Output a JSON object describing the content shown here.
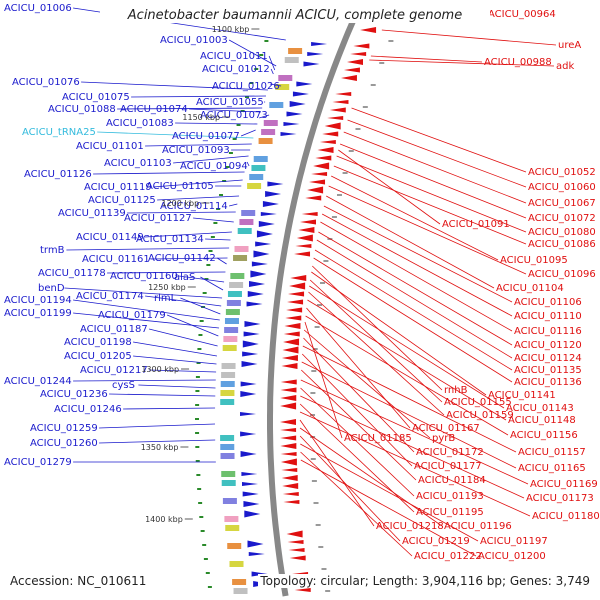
{
  "title": "Acinetobacter baumannii ACICU, complete genome",
  "footer": {
    "accession": "Accession: NC_010611",
    "summary": "Topology: circular; Length: 3,904,116 bp; Genes: 3,749"
  },
  "colors": {
    "forward_genes": "#1a1acc",
    "reverse_genes": "#e01010",
    "trna": "#33bbdd",
    "backbone": "#888888",
    "gc_marker": "#2a8a2a"
  },
  "kbp_marks": [
    "1100 kbp",
    "1150 kbp",
    "1200 kbp",
    "1250 kbp",
    "1300 kbp",
    "1350 kbp",
    "1400 kbp"
  ],
  "left_labels": [
    "ACICU_01006",
    "ACICU_01003",
    "ACICU_01011",
    "ACICU_01012",
    "ACICU_01026",
    "ACICU_01076",
    "ACICU_01075",
    "ACICU_01055",
    "ACICU_01088",
    "ACICU_01074",
    "ACICU_01073",
    "ACICU_01083",
    "ACICU_01077",
    "ACICU_tRNA25",
    "ACICU_01101",
    "ACICU_01093",
    "ACICU_01103",
    "ACICU_01094",
    "ACICU_01126",
    "ACICU_01119",
    "ACICU_01105",
    "ACICU_01125",
    "ACICU_01114",
    "ACICU_01139",
    "ACICU_01127",
    "ACICU_01149",
    "ACICU_01134",
    "trmB",
    "ACICU_01161",
    "ACICU_01142",
    "ACICU_01178",
    "ACICU_01160",
    "alaS",
    "benD",
    "ACICU_01174",
    "rlmL",
    "ACICU_01194",
    "ACICU_01199",
    "ACICU_01179",
    "ACICU_01187",
    "ACICU_01198",
    "ACICU_01205",
    "ACICU_01217",
    "ACICU_01244",
    "cysS",
    "ACICU_01236",
    "ACICU_01246",
    "ACICU_01259",
    "ACICU_01260",
    "ACICU_01279"
  ],
  "right_labels": [
    "ACICU_00964",
    "ureA",
    "ACICU_00988",
    "adk",
    "ACICU_01052",
    "ACICU_01060",
    "ACICU_01067",
    "ACICU_01072",
    "ACICU_01091",
    "ACICU_01080",
    "ACICU_01086",
    "ACICU_01095",
    "ACICU_01096",
    "ACICU_01104",
    "ACICU_01106",
    "ACICU_01110",
    "ACICU_01116",
    "ACICU_01120",
    "ACICU_01124",
    "ACICU_01135",
    "ACICU_01136",
    "rnhB",
    "ACICU_01141",
    "ACICU_01155",
    "ACICU_01143",
    "ACICU_01159",
    "ACICU_01148",
    "ACICU_01167",
    "ACICU_01156",
    "ACICU_01185",
    "pyrB",
    "ACICU_01172",
    "ACICU_01157",
    "ACICU_01177",
    "ACICU_01165",
    "ACICU_01184",
    "ACICU_01169",
    "ACICU_01193",
    "ACICU_01173",
    "ACICU_01195",
    "ACICU_01180",
    "ACICU_01218",
    "ACICU_01196",
    "ACICU_01219",
    "ACICU_01197",
    "ACICU_01222",
    "ACICU_01200"
  ]
}
